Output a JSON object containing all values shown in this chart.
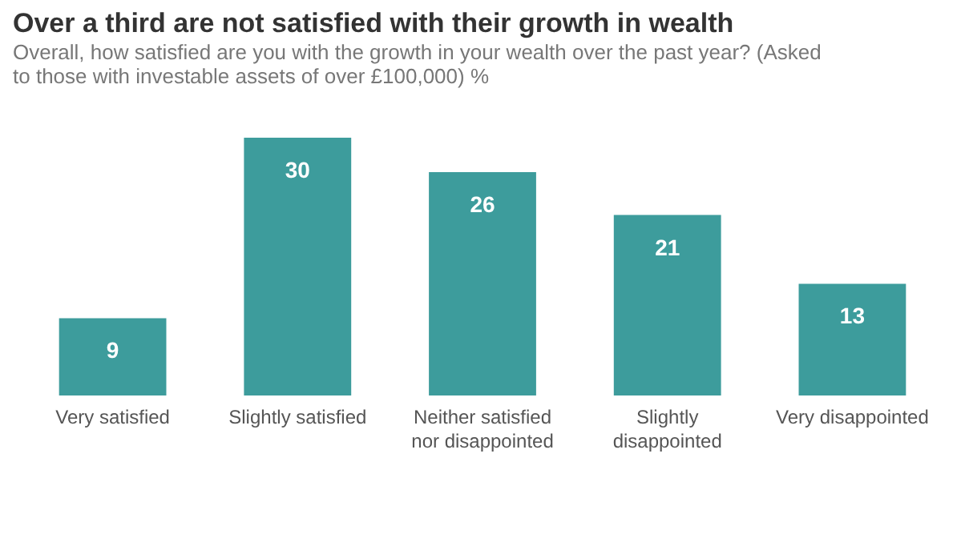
{
  "chart_data": {
    "type": "bar",
    "title": "Over a third are not satisfied with their growth in wealth",
    "subtitle": "Overall, how satisfied are you with the growth in your wealth over the past year? (Asked to those with investable assets of over £100,000) %",
    "categories": [
      "Very satisfied",
      "Slightly satisfied",
      "Neither satisfied\nnor disappointed",
      "Slightly\ndisappointed",
      "Very disappointed"
    ],
    "values": [
      9,
      30,
      26,
      21,
      13
    ],
    "color": "#3d9c9c",
    "data_labels": true,
    "grid": false
  }
}
